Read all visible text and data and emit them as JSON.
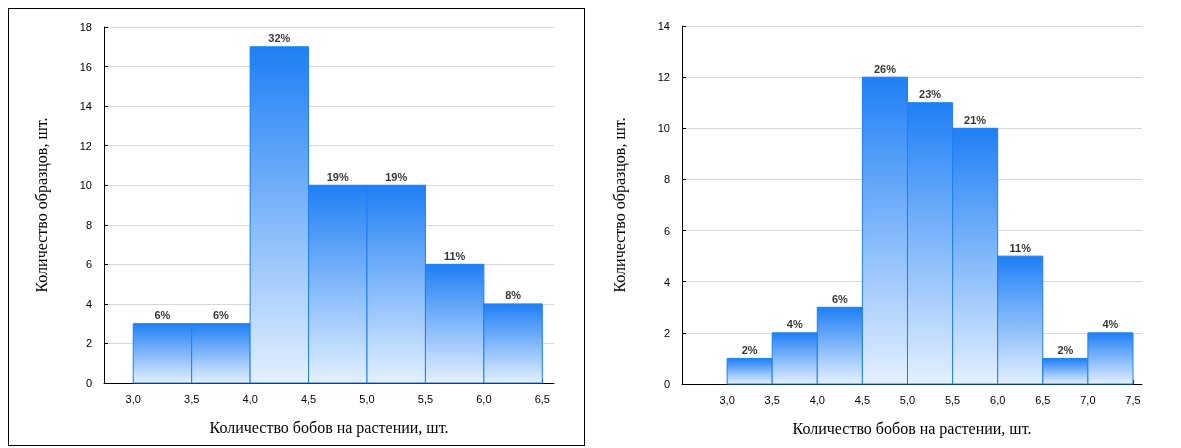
{
  "chart_data": [
    {
      "type": "histogram",
      "xlabel": "Количество бобов на растении, шт.",
      "ylabel": "Количество образцов, шт.",
      "bins": [
        3.0,
        3.5,
        4.0,
        4.5,
        5.0,
        5.5,
        6.0,
        6.5
      ],
      "values": [
        3,
        3,
        17,
        10,
        10,
        6,
        4
      ],
      "annotations": [
        {
          "text": "6%",
          "x": 3.25,
          "y": 3
        },
        {
          "text": "6%",
          "x": 3.75,
          "y": 3
        },
        {
          "text": "32%",
          "x": 4.25,
          "y": 17
        },
        {
          "text": "19%",
          "x": 4.75,
          "y": 10
        },
        {
          "text": "19%",
          "x": 5.25,
          "y": 10
        },
        {
          "text": "11%",
          "x": 5.75,
          "y": 6
        },
        {
          "text": "8%",
          "x": 6.25,
          "y": 4
        }
      ],
      "color": "#1e7ff5",
      "xlim": [
        2.75,
        6.6
      ],
      "xticks": [
        {
          "value": 3.0,
          "label": "3,0"
        },
        {
          "value": 3.5,
          "label": "3,5"
        },
        {
          "value": 4.0,
          "label": "4,0"
        },
        {
          "value": 4.5,
          "label": "4,5"
        },
        {
          "value": 5.0,
          "label": "5,0"
        },
        {
          "value": 5.5,
          "label": "5,5"
        },
        {
          "value": 6.0,
          "label": "6,0"
        },
        {
          "value": 6.5,
          "label": "6,5"
        }
      ],
      "ylim": [
        0,
        18
      ],
      "yticks": [
        0,
        2,
        4,
        6,
        8,
        10,
        12,
        14,
        16,
        18
      ],
      "grid": "y"
    },
    {
      "type": "histogram",
      "xlabel": "Количество бобов на растении, шт.",
      "ylabel": "Количество образцов, шт.",
      "bins": [
        3.0,
        3.5,
        4.0,
        4.5,
        5.0,
        5.5,
        6.0,
        6.5,
        7.0,
        7.5
      ],
      "values": [
        1,
        2,
        3,
        12,
        11,
        10,
        5,
        1,
        2
      ],
      "annotations": [
        {
          "text": "2%",
          "x": 3.25,
          "y": 1
        },
        {
          "text": "4%",
          "x": 3.75,
          "y": 2
        },
        {
          "text": "6%",
          "x": 4.25,
          "y": 3
        },
        {
          "text": "26%",
          "x": 4.75,
          "y": 12
        },
        {
          "text": "23%",
          "x": 5.25,
          "y": 11
        },
        {
          "text": "21%",
          "x": 5.75,
          "y": 10
        },
        {
          "text": "11%",
          "x": 6.25,
          "y": 5
        },
        {
          "text": "2%",
          "x": 6.75,
          "y": 1
        },
        {
          "text": "4%",
          "x": 7.25,
          "y": 2
        }
      ],
      "color": "#1e7ff5",
      "xlim": [
        2.5,
        7.6
      ],
      "xticks": [
        {
          "value": 3.0,
          "label": "3,0"
        },
        {
          "value": 3.5,
          "label": "3,5"
        },
        {
          "value": 4.0,
          "label": "4,0"
        },
        {
          "value": 4.5,
          "label": "4,5"
        },
        {
          "value": 5.0,
          "label": "5,0"
        },
        {
          "value": 5.5,
          "label": "5,5"
        },
        {
          "value": 6.0,
          "label": "6,0"
        },
        {
          "value": 6.5,
          "label": "6,5"
        },
        {
          "value": 7.0,
          "label": "7,0"
        },
        {
          "value": 7.5,
          "label": "7,5"
        }
      ],
      "ylim": [
        0,
        14
      ],
      "yticks": [
        0,
        2,
        4,
        6,
        8,
        10,
        12,
        14
      ],
      "grid": "y"
    }
  ]
}
